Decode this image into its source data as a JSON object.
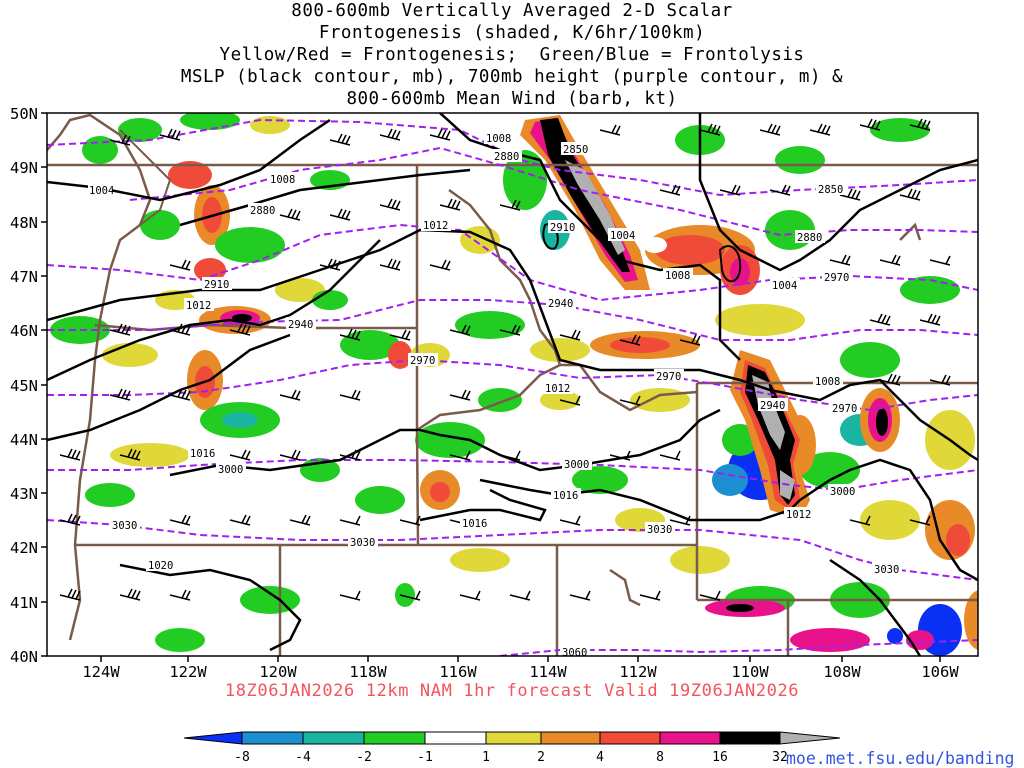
{
  "title_lines": [
    "800-600mb Vertically Averaged 2-D Scalar",
    "Frontogenesis (shaded, K/6hr/100km)",
    "Yellow/Red = Frontogenesis;  Green/Blue = Frontolysis",
    "MSLP (black contour, mb), 700mb height (purple contour, m) &",
    "800-600mb Mean Wind (barb, kt)"
  ],
  "footer": "18Z06JAN2026 12km NAM 1hr forecast Valid 19Z06JAN2026",
  "url": "moe.met.fsu.edu/banding",
  "colors": {
    "purple_contour": "#a020f0",
    "mslp_contour": "#000000",
    "state_border": "#7a5a48",
    "footer_text": "#f2545b",
    "url_text": "#3355dd"
  },
  "map": {
    "lat_labels": [
      "50N",
      "49N",
      "48N",
      "47N",
      "46N",
      "45N",
      "44N",
      "43N",
      "42N",
      "41N",
      "40N"
    ],
    "lon_labels": [
      "124W",
      "122W",
      "120W",
      "118W",
      "116W",
      "114W",
      "112W",
      "110W",
      "108W",
      "106W"
    ]
  },
  "contour_labels": {
    "mslp": [
      "1008",
      "1004",
      "1004",
      "1008",
      "1012",
      "1008",
      "1004",
      "1008",
      "1012",
      "1012",
      "1016",
      "1016",
      "1016",
      "1012",
      "1020"
    ],
    "height": [
      "2880",
      "2850",
      "2850",
      "2880",
      "2910",
      "2880",
      "2940",
      "2910",
      "2940",
      "2970",
      "2970",
      "2970",
      "2940",
      "2970",
      "3000",
      "3000",
      "3000",
      "3030",
      "3030",
      "3030",
      "3030",
      "3060"
    ]
  },
  "colorbar": {
    "labels": [
      "-8",
      "-4",
      "-2",
      "-1",
      "1",
      "2",
      "4",
      "8",
      "16",
      "32"
    ],
    "colors": [
      "#0a2ff5",
      "#1b8fd0",
      "#19b5a0",
      "#22c77a",
      "#22cc22",
      "#ffffff",
      "#e0d838",
      "#e88a28",
      "#f04a38",
      "#e8128a",
      "#000000",
      "#b0b0b0"
    ]
  }
}
